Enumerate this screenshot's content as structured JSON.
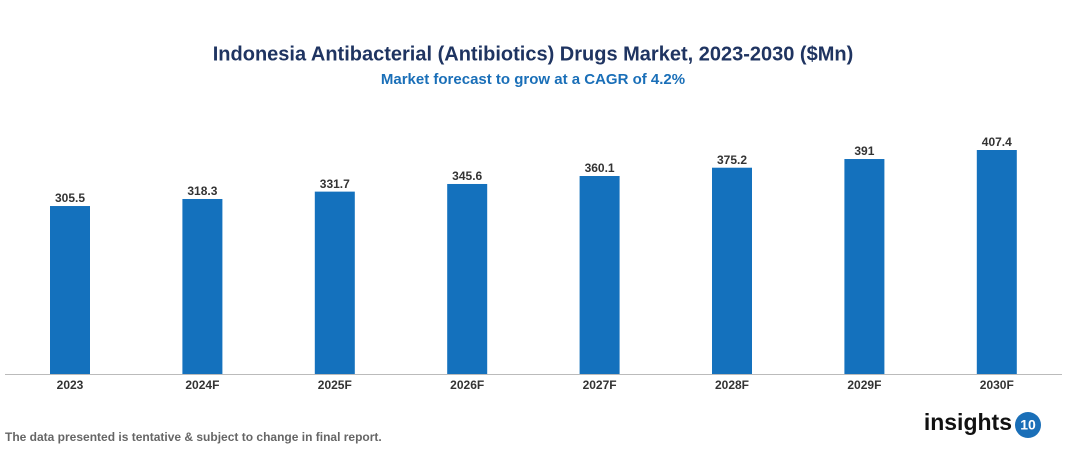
{
  "chart_data": {
    "type": "bar",
    "title": "Indonesia Antibacterial (Antibiotics) Drugs Market, 2023-2030 ($Mn)",
    "subtitle": "Market forecast to grow at a CAGR of 4.2%",
    "categories": [
      "2023",
      "2024F",
      "2025F",
      "2026F",
      "2027F",
      "2028F",
      "2029F",
      "2030F"
    ],
    "values": [
      305.5,
      318.3,
      331.7,
      345.6,
      360.1,
      375.2,
      391,
      407.4
    ],
    "color": "#1471bd",
    "footnote": "The data presented is tentative & subject to change in final report.",
    "logo": {
      "text": "insights",
      "badge": "10"
    }
  }
}
